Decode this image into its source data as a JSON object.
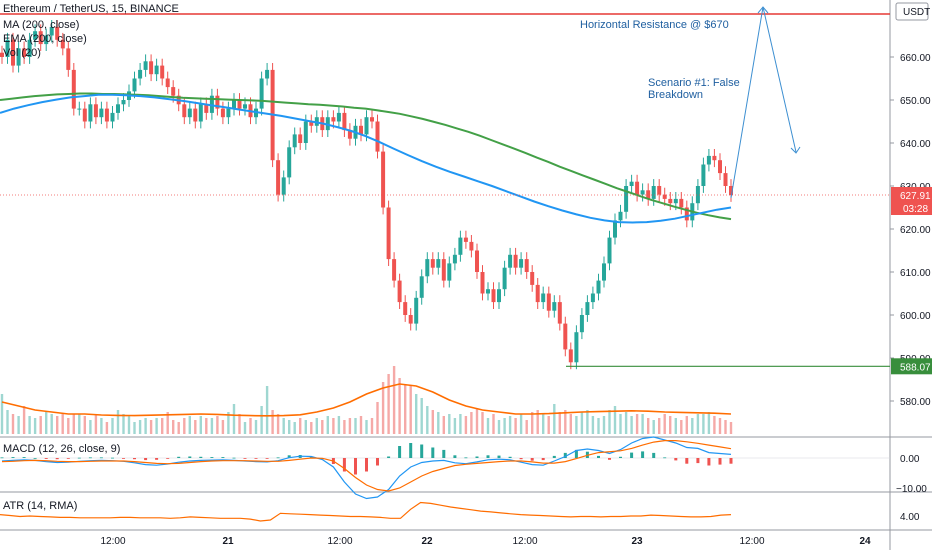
{
  "header": {
    "symbol_line": "Ethereum / TetherUS, 15, BINANCE",
    "ma_label": "MA (200, close)",
    "ema_label": "EMA (200, close)",
    "vol_label": "Vol (20)"
  },
  "price_axis": {
    "currency_badge": "USDT",
    "ticks": [
      "660.00",
      "650.00",
      "640.00",
      "630.00",
      "620.00",
      "610.00",
      "600.00",
      "590.00",
      "580.00"
    ],
    "last_price": "627.91",
    "countdown": "03:28",
    "support_label": "588.07"
  },
  "time_axis": {
    "ticks": [
      "12:00",
      "21",
      "12:00",
      "22",
      "12:00",
      "23",
      "12:00",
      "24"
    ]
  },
  "annotations": {
    "resistance": "Horizontal Resistance @ $670",
    "scenario_line1": "Scenario #1: False",
    "scenario_line2": "Breakdown"
  },
  "macd": {
    "label": "MACD (12, 26, close, 9)",
    "ticks": [
      "0.00",
      "−10.00"
    ]
  },
  "atr": {
    "label": "ATR (14, RMA)",
    "ticks": [
      "4.00"
    ]
  },
  "colors": {
    "up": "#26a69a",
    "down": "#ef5350",
    "ma": "#43a047",
    "ema": "#2196f3",
    "resistance": "#e53935",
    "support": "#388e3c",
    "annotation": "#1f5fa0",
    "macd_line": "#2196f3",
    "signal_line": "#ff6d00",
    "atr_line": "#ff6d00",
    "vol_ma": "#ff6d00"
  },
  "chart_data": {
    "type": "candlestick",
    "symbol": "Ethereum / TetherUS",
    "interval": "15",
    "exchange": "BINANCE",
    "ylim": [
      576,
      670
    ],
    "resistance": 670,
    "support": 588.07,
    "last_price": 627.91,
    "closes": [
      660,
      664,
      658,
      662,
      660,
      664,
      666,
      663,
      665,
      667,
      664,
      662,
      657,
      648,
      648,
      645,
      649,
      646,
      648,
      645,
      647,
      649,
      650,
      652,
      655,
      657,
      659,
      656,
      658,
      655,
      653,
      651,
      649,
      646,
      648,
      645,
      649,
      647,
      651,
      648,
      646,
      648,
      650,
      648,
      649,
      646,
      648,
      655,
      657,
      636,
      628,
      632,
      639,
      642,
      640,
      645,
      644,
      646,
      643,
      646,
      645,
      647,
      643,
      641,
      644,
      642,
      646,
      645,
      638,
      625,
      613,
      608,
      603,
      600,
      598,
      604,
      609,
      613,
      611,
      613,
      608,
      612,
      614,
      618,
      617,
      615,
      610,
      605,
      606,
      603,
      606,
      611,
      614,
      611,
      613,
      610,
      607,
      603,
      605,
      601,
      603,
      598,
      592,
      589,
      596,
      600,
      603,
      605,
      608,
      612,
      618,
      622,
      624,
      630,
      631,
      628,
      629,
      627,
      630,
      628,
      627,
      626,
      627,
      625,
      622,
      626,
      630,
      635,
      637,
      636,
      633,
      630,
      627.91
    ],
    "volume": [
      20,
      12,
      10,
      9,
      14,
      9,
      8,
      9,
      11,
      10,
      9,
      10,
      8,
      10,
      10,
      9,
      7,
      10,
      8,
      6,
      8,
      12,
      10,
      9,
      6,
      7,
      8,
      7,
      8,
      8,
      11,
      7,
      6,
      8,
      9,
      7,
      9,
      8,
      8,
      9,
      7,
      11,
      15,
      10,
      6,
      8,
      7,
      14,
      24,
      12,
      10,
      8,
      7,
      6,
      8,
      7,
      6,
      8,
      7,
      9,
      8,
      9,
      7,
      8,
      8,
      9,
      7,
      8,
      16,
      26,
      30,
      34,
      28,
      25,
      24,
      20,
      18,
      14,
      12,
      11,
      9,
      10,
      8,
      10,
      9,
      11,
      13,
      11,
      8,
      10,
      7,
      8,
      9,
      8,
      10,
      7,
      11,
      12,
      10,
      9,
      15,
      11,
      12,
      10,
      9,
      11,
      12,
      9,
      8,
      9,
      12,
      14,
      10,
      11,
      9,
      10,
      10,
      8,
      7,
      8,
      10,
      9,
      8,
      7,
      9,
      8,
      10,
      10,
      11,
      9,
      8,
      7,
      6
    ],
    "ma200": [
      650,
      650.3,
      650.6,
      650.9,
      651.1,
      651.3,
      651.4,
      651.5,
      651.5,
      651.4,
      651.4,
      651.3,
      651.2,
      651.1,
      650.9,
      650.7,
      650.5,
      650.4,
      650.3,
      650.2,
      650.1,
      650,
      649.9,
      649.8,
      649.6,
      649.4,
      649.2,
      649,
      648.9,
      648.7,
      648.5,
      648.2,
      648,
      647.6,
      647.2,
      646.8,
      646.2,
      645.6,
      644.9,
      644.2,
      643.4,
      642.6,
      641.7,
      640.7,
      639.7,
      638.7,
      637.7,
      636.6,
      635.6,
      634.5,
      633.5,
      632.5,
      631.5,
      630.5,
      629.5,
      628.6,
      627.7,
      626.8,
      626,
      625.2,
      624.5,
      623.8,
      623.2,
      622.7,
      622.3
    ],
    "ema200": [
      647,
      648,
      648.8,
      649.5,
      650.1,
      650.6,
      650.9,
      651.2,
      651.2,
      651.1,
      650.9,
      650.6,
      650.2,
      649.8,
      649.3,
      648.8,
      648.3,
      647.8,
      647.3,
      646.8,
      646.3,
      645.7,
      645.1,
      644.5,
      643.7,
      642.8,
      641.6,
      640.2,
      638.7,
      637.2,
      635.8,
      634.5,
      633.3,
      632.2,
      631.1,
      630,
      628.8,
      627.6,
      626.4,
      625.3,
      624.3,
      623.4,
      622.6,
      622,
      621.6,
      621.5,
      621.6,
      621.9,
      622.4,
      623.1,
      623.8,
      624.5,
      625
    ],
    "vol_ma20": [
      16,
      14,
      12,
      11,
      10,
      10,
      9.5,
      9.3,
      9.2,
      9.4,
      9.6,
      9.8,
      10,
      9.8,
      9.4,
      9.2,
      9.1,
      9.2,
      9.6,
      11,
      13,
      16,
      20,
      23,
      25,
      24,
      21,
      17,
      14,
      12,
      11,
      10,
      10,
      10.2,
      10.6,
      11,
      11.2,
      11.4,
      11.6,
      11.4,
      11,
      10.8,
      10.6,
      10.4,
      10
    ],
    "macd": [
      -1,
      -0.8,
      -0.6,
      -0.8,
      -1.2,
      -1.5,
      -1.4,
      -1.1,
      -0.9,
      -0.8,
      -0.9,
      -1.1,
      -1.6,
      -2.2,
      -2.4,
      -2,
      -1.4,
      -1,
      -0.8,
      -0.7,
      -0.6,
      -0.8,
      -1,
      -1.2,
      -1.3,
      -0.9,
      0.1,
      0.6,
      0.5,
      -0.5,
      -3,
      -8,
      -12,
      -13.5,
      -13,
      -10.5,
      -6,
      -3,
      -1.5,
      -1,
      -0.8,
      -1.6,
      -1.9,
      -1.3,
      -0.6,
      -0.4,
      -0.6,
      -1.4,
      -2.2,
      -2.4,
      -1,
      0.5,
      2.5,
      3,
      2.5,
      1.5,
      2.8,
      5,
      6.5,
      7,
      6,
      5,
      3.5,
      3.2,
      1.8,
      1.5,
      1.2
    ],
    "signal": [
      -1.2,
      -1.1,
      -0.9,
      -0.8,
      -0.9,
      -1.1,
      -1.2,
      -1.2,
      -1.1,
      -1,
      -1,
      -1,
      -1.2,
      -1.5,
      -1.8,
      -1.9,
      -1.8,
      -1.5,
      -1.2,
      -1,
      -0.9,
      -0.9,
      -0.9,
      -1,
      -1.1,
      -1.1,
      -0.8,
      -0.4,
      0,
      -0.1,
      -1,
      -3.5,
      -6.5,
      -9,
      -10.5,
      -11,
      -10,
      -8,
      -6,
      -4.5,
      -3.5,
      -2.5,
      -2.1,
      -1.8,
      -1.5,
      -1.2,
      -1,
      -1,
      -1.3,
      -1.7,
      -1.7,
      -1.2,
      -0.2,
      0.9,
      1.8,
      2.1,
      2.4,
      3.2,
      4.3,
      5.3,
      5.8,
      5.8,
      5.4,
      4.9,
      4.3,
      3.7,
      3.1
    ],
    "atr": [
      4.3,
      4.1,
      3.9,
      4,
      3.9,
      3.8,
      3.7,
      3.7,
      3.6,
      3.6,
      3.6,
      3.6,
      3.7,
      3.7,
      3.6,
      3.6,
      3.6,
      3.5,
      3.6,
      3.8,
      3.7,
      3.6,
      3.5,
      3.5,
      3.5,
      3.3,
      2.9,
      3.1,
      4.6,
      4.5,
      4.4,
      4.3,
      4.2,
      4.1,
      4,
      3.9,
      3.9,
      3.8,
      3.7,
      3.5,
      3.5,
      5.5,
      7,
      6.8,
      6.4,
      6,
      5.7,
      5.4,
      5.1,
      4.9,
      4.7,
      4.5,
      4.3,
      4.2,
      4.1,
      4,
      3.9,
      3.8,
      3.9,
      3.9,
      3.8,
      3.9,
      3.9,
      4,
      4,
      4.2,
      4.1,
      4,
      3.9,
      3.8,
      3.8,
      3.9,
      4.2,
      4.3
    ]
  }
}
